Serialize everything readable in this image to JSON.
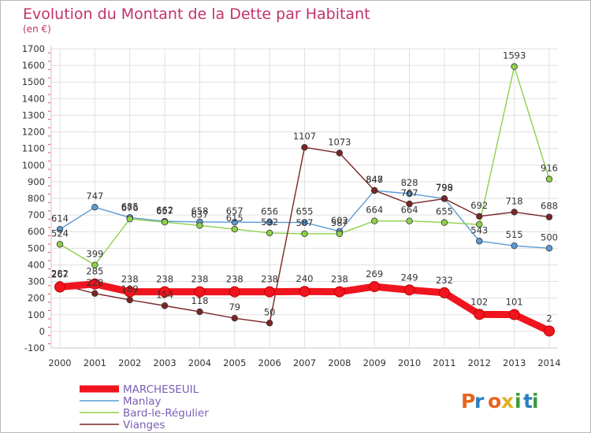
{
  "chart_data": {
    "type": "line",
    "title": "Evolution du Montant de la Dette par Habitant",
    "subtitle": "(en €)",
    "xlabel": "",
    "ylabel": "",
    "x": [
      "2000",
      "2001",
      "2002",
      "2003",
      "2004",
      "2005",
      "2006",
      "2007",
      "2008",
      "2009",
      "2010",
      "2011",
      "2012",
      "2013",
      "2014"
    ],
    "ylim": [
      -100,
      1700
    ],
    "yticks": [
      -100,
      0,
      100,
      200,
      300,
      400,
      500,
      600,
      700,
      800,
      900,
      1000,
      1100,
      1200,
      1300,
      1400,
      1500,
      1600,
      1700
    ],
    "grid": true,
    "legend_position": "bottom-left",
    "series": [
      {
        "name": "Manlay",
        "color": "#5b9bd5",
        "values": [
          614,
          747,
          685,
          662,
          658,
          657,
          656,
          655,
          602,
          847,
          828,
          799,
          543,
          515,
          500
        ],
        "labels": [
          "614",
          "747",
          "685",
          "662",
          "658",
          "657",
          "656",
          "655",
          "602",
          "847",
          "828",
          "799",
          "543",
          "515",
          "500"
        ]
      },
      {
        "name": "Bard-le-Régulier",
        "color": "#8ed04a",
        "values": [
          524,
          399,
          676,
          657,
          637,
          615,
          592,
          587,
          587,
          664,
          664,
          655,
          643,
          1593,
          916
        ],
        "labels": [
          "524",
          "399",
          "676",
          "657",
          "637",
          "615",
          "592",
          "587",
          "587",
          "664",
          "664",
          "655",
          "",
          "1593",
          "916"
        ]
      },
      {
        "name": "Vianges",
        "color": "#7a2525",
        "values": [
          282,
          228,
          189,
          154,
          118,
          79,
          50,
          1107,
          1073,
          848,
          767,
          798,
          692,
          718,
          688
        ],
        "labels": [
          "282",
          "228",
          "189",
          "154",
          "118",
          "79",
          "50",
          "1107",
          "1073",
          "848",
          "767",
          "798",
          "692",
          "718",
          "688"
        ]
      },
      {
        "name": "MARCHESEUIL",
        "color": "#f0141e",
        "values": [
          267,
          285,
          238,
          238,
          238,
          238,
          238,
          240,
          238,
          269,
          249,
          232,
          102,
          101,
          2
        ],
        "labels": [
          "267",
          "285",
          "238",
          "238",
          "238",
          "238",
          "238",
          "240",
          "238",
          "269",
          "249",
          "232",
          "102",
          "101",
          "2"
        ]
      }
    ],
    "legend": [
      "MARCHESEUIL",
      "Manlay",
      "Bard-le-Régulier",
      "Vianges"
    ]
  },
  "logo": {
    "text": "Proxiti",
    "colors": [
      "#e8641e",
      "#2a7fc0",
      "#3a9a3a",
      "#e0b020"
    ]
  },
  "colors": {
    "title": "#c0336b",
    "legend_text": "#7b5fb5",
    "axis_text": "#333333",
    "grid": "#e0e0e0",
    "axis": "#c8c8c8"
  }
}
